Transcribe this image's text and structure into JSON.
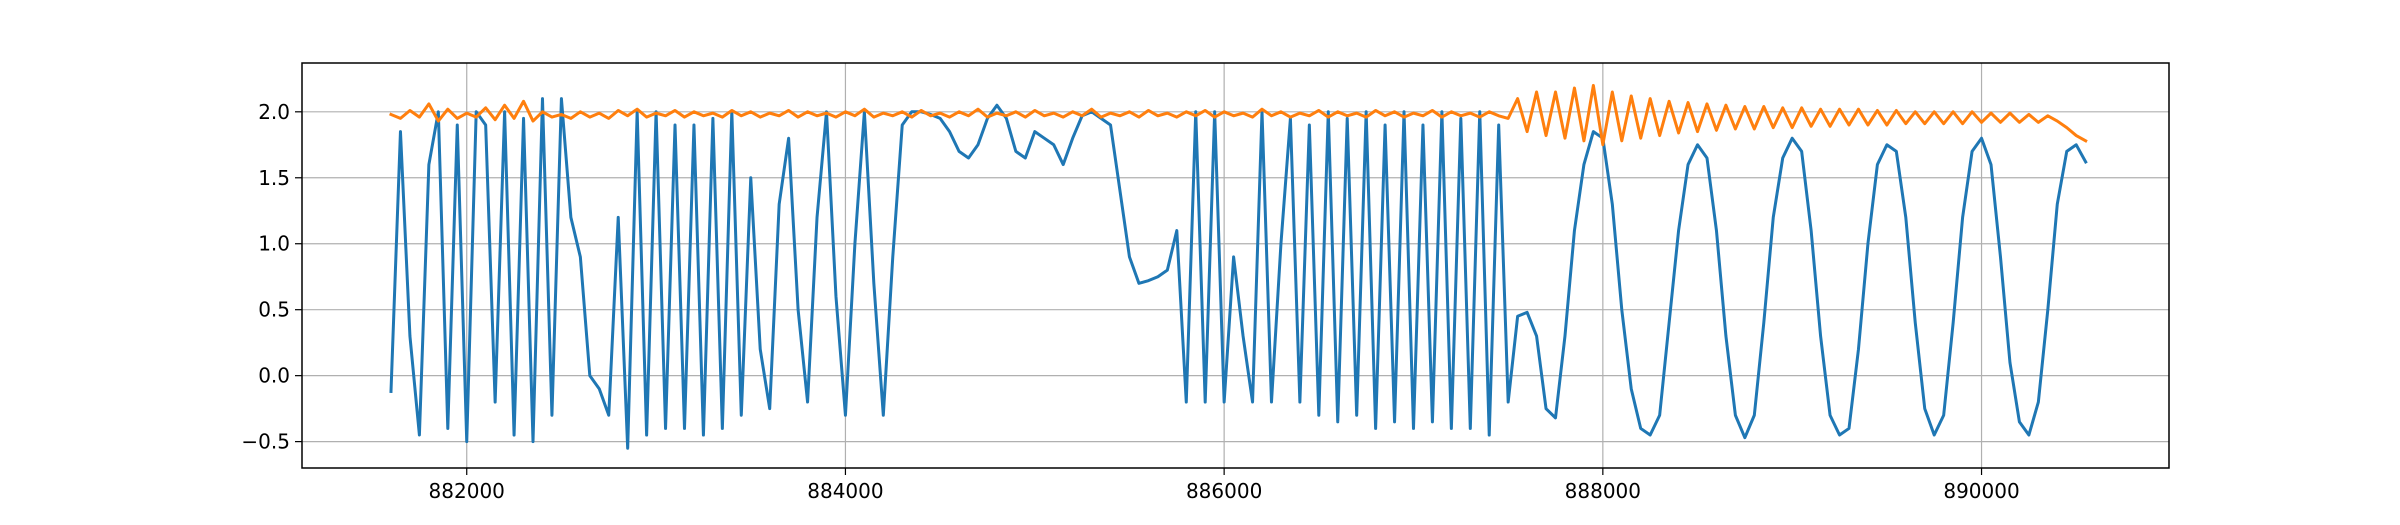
{
  "chart_data": {
    "type": "line",
    "x": [
      881600,
      881650,
      881700,
      881750,
      881800,
      881850,
      881900,
      881950,
      882000,
      882050,
      882100,
      882150,
      882200,
      882250,
      882300,
      882350,
      882400,
      882450,
      882500,
      882550,
      882600,
      882650,
      882700,
      882750,
      882800,
      882850,
      882900,
      882950,
      883000,
      883050,
      883100,
      883150,
      883200,
      883250,
      883300,
      883350,
      883400,
      883450,
      883500,
      883550,
      883600,
      883650,
      883700,
      883750,
      883800,
      883850,
      883900,
      883950,
      884000,
      884050,
      884100,
      884150,
      884200,
      884250,
      884300,
      884350,
      884400,
      884450,
      884500,
      884550,
      884600,
      884650,
      884700,
      884750,
      884800,
      884850,
      884900,
      884950,
      885000,
      885050,
      885100,
      885150,
      885200,
      885250,
      885300,
      885350,
      885400,
      885450,
      885500,
      885550,
      885600,
      885650,
      885700,
      885750,
      885800,
      885850,
      885900,
      885950,
      886000,
      886050,
      886100,
      886150,
      886200,
      886250,
      886300,
      886350,
      886400,
      886450,
      886500,
      886550,
      886600,
      886650,
      886700,
      886750,
      886800,
      886850,
      886900,
      886950,
      887000,
      887050,
      887100,
      887150,
      887200,
      887250,
      887300,
      887350,
      887400,
      887450,
      887500,
      887550,
      887600,
      887650,
      887700,
      887750,
      887800,
      887850,
      887900,
      887950,
      888000,
      888050,
      888100,
      888150,
      888200,
      888250,
      888300,
      888350,
      888400,
      888450,
      888500,
      888550,
      888600,
      888650,
      888700,
      888750,
      888800,
      888850,
      888900,
      888950,
      889000,
      889050,
      889100,
      889150,
      889200,
      889250,
      889300,
      889350,
      889400,
      889450,
      889500,
      889550,
      889600,
      889650,
      889700,
      889750,
      889800,
      889850,
      889900,
      889950,
      890000,
      890050,
      890100,
      890150,
      890200,
      890250,
      890300,
      890350,
      890400,
      890450,
      890500,
      890550
    ],
    "series": [
      {
        "color": "#1f77b4",
        "values": [
          -0.12,
          1.85,
          0.3,
          -0.45,
          1.6,
          2.0,
          -0.4,
          1.9,
          -0.5,
          2.0,
          1.9,
          -0.2,
          2.0,
          -0.45,
          1.95,
          -0.5,
          2.1,
          -0.3,
          2.1,
          1.2,
          0.9,
          0.0,
          -0.1,
          -0.3,
          1.2,
          -0.55,
          2.0,
          -0.45,
          2.0,
          -0.4,
          1.9,
          -0.4,
          1.9,
          -0.45,
          1.95,
          -0.4,
          2.0,
          -0.3,
          1.5,
          0.2,
          -0.25,
          1.3,
          1.8,
          0.5,
          -0.2,
          1.2,
          2.0,
          0.6,
          -0.3,
          1.0,
          2.0,
          0.7,
          -0.3,
          0.9,
          1.9,
          2.0,
          2.0,
          1.98,
          1.95,
          1.85,
          1.7,
          1.65,
          1.75,
          1.95,
          2.05,
          1.95,
          1.7,
          1.65,
          1.85,
          1.8,
          1.75,
          1.6,
          1.8,
          1.97,
          2.0,
          1.95,
          1.9,
          1.4,
          0.9,
          0.7,
          0.72,
          0.75,
          0.8,
          1.1,
          -0.2,
          2.0,
          -0.2,
          2.0,
          -0.2,
          0.9,
          0.3,
          -0.2,
          2.0,
          -0.2,
          1.0,
          1.95,
          -0.2,
          1.9,
          -0.3,
          2.0,
          -0.35,
          1.95,
          -0.3,
          2.0,
          -0.4,
          1.9,
          -0.35,
          2.0,
          -0.4,
          1.9,
          -0.35,
          2.0,
          -0.4,
          1.95,
          -0.4,
          2.0,
          -0.45,
          1.9,
          -0.2,
          0.45,
          0.48,
          0.3,
          -0.25,
          -0.32,
          0.3,
          1.1,
          1.6,
          1.85,
          1.8,
          1.3,
          0.5,
          -0.1,
          -0.4,
          -0.45,
          -0.3,
          0.4,
          1.1,
          1.6,
          1.75,
          1.65,
          1.1,
          0.3,
          -0.3,
          -0.47,
          -0.3,
          0.4,
          1.2,
          1.65,
          1.8,
          1.7,
          1.1,
          0.3,
          -0.3,
          -0.45,
          -0.4,
          0.2,
          1.0,
          1.6,
          1.75,
          1.7,
          1.2,
          0.4,
          -0.25,
          -0.45,
          -0.3,
          0.4,
          1.2,
          1.7,
          1.8,
          1.6,
          0.9,
          0.1,
          -0.35,
          -0.45,
          -0.2,
          0.5,
          1.3,
          1.7,
          1.75,
          1.62
        ]
      },
      {
        "color": "#ff7f0e",
        "values": [
          1.98,
          1.95,
          2.01,
          1.96,
          2.06,
          1.93,
          2.02,
          1.95,
          1.99,
          1.96,
          2.03,
          1.94,
          2.05,
          1.95,
          2.08,
          1.93,
          2.0,
          1.96,
          1.98,
          1.95,
          2.0,
          1.96,
          1.99,
          1.95,
          2.01,
          1.97,
          2.02,
          1.96,
          1.99,
          1.97,
          2.01,
          1.96,
          2.0,
          1.97,
          1.99,
          1.96,
          2.01,
          1.97,
          2.0,
          1.96,
          1.99,
          1.97,
          2.01,
          1.96,
          2.0,
          1.97,
          1.99,
          1.96,
          2.0,
          1.97,
          2.02,
          1.96,
          1.99,
          1.97,
          2.0,
          1.96,
          2.01,
          1.97,
          1.99,
          1.96,
          2.0,
          1.97,
          2.02,
          1.96,
          1.99,
          1.97,
          2.0,
          1.96,
          2.01,
          1.97,
          1.99,
          1.96,
          2.0,
          1.97,
          2.02,
          1.96,
          1.99,
          1.97,
          2.0,
          1.96,
          2.01,
          1.97,
          1.99,
          1.96,
          2.0,
          1.97,
          2.01,
          1.96,
          2.0,
          1.97,
          1.99,
          1.96,
          2.02,
          1.97,
          2.0,
          1.96,
          1.99,
          1.97,
          2.01,
          1.96,
          2.0,
          1.97,
          1.99,
          1.96,
          2.01,
          1.97,
          2.0,
          1.96,
          1.99,
          1.97,
          2.01,
          1.96,
          2.0,
          1.97,
          1.99,
          1.96,
          2.0,
          1.97,
          1.95,
          2.1,
          1.85,
          2.15,
          1.82,
          2.15,
          1.8,
          2.18,
          1.78,
          2.2,
          1.75,
          2.15,
          1.78,
          2.12,
          1.8,
          2.1,
          1.82,
          2.08,
          1.84,
          2.07,
          1.85,
          2.06,
          1.86,
          2.05,
          1.87,
          2.04,
          1.87,
          2.04,
          1.88,
          2.03,
          1.88,
          2.03,
          1.89,
          2.02,
          1.89,
          2.02,
          1.9,
          2.02,
          1.9,
          2.01,
          1.9,
          2.01,
          1.91,
          2.0,
          1.91,
          2.0,
          1.91,
          2.0,
          1.91,
          2.0,
          1.92,
          1.99,
          1.92,
          1.99,
          1.92,
          1.98,
          1.92,
          1.97,
          1.93,
          1.88,
          1.82,
          1.78
        ]
      }
    ],
    "xlim": [
      881130,
      890990
    ],
    "ylim": [
      -0.7,
      2.37
    ],
    "xticks": [
      882000,
      884000,
      886000,
      888000,
      890000
    ],
    "yticks": [
      {
        "value": -0.5,
        "label": "−0.5"
      },
      {
        "value": 0,
        "label": "0.0"
      },
      0.5,
      {
        "value": 1,
        "label": "1.0"
      },
      1.5,
      {
        "value": 2,
        "label": "2.0"
      }
    ],
    "grid": true
  }
}
